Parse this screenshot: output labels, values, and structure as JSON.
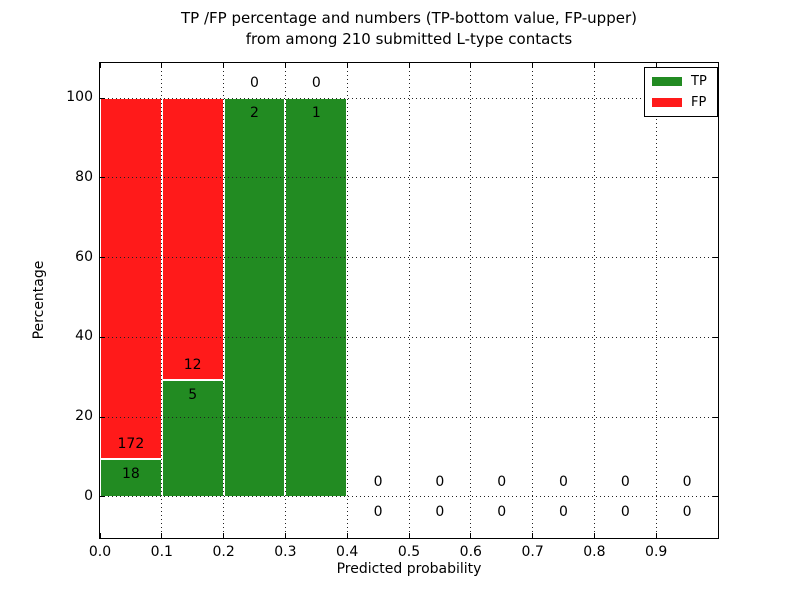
{
  "chart_data": {
    "type": "bar",
    "stacked": true,
    "title_line1": "TP /FP percentage and numbers (TP-bottom value, FP-upper)",
    "title_line2": "from among 210 submitted L-type contacts",
    "xlabel": "Predicted probability",
    "ylabel": "Percentage",
    "xlim": [
      0.0,
      1.0
    ],
    "ylim": [
      -10.3,
      108.8
    ],
    "x_ticks": [
      "0.0",
      "0.1",
      "0.2",
      "0.3",
      "0.4",
      "0.5",
      "0.6",
      "0.7",
      "0.8",
      "0.9"
    ],
    "y_ticks": [
      0,
      20,
      40,
      60,
      80,
      100
    ],
    "grid": true,
    "grid_style": "dotted",
    "legend": {
      "position": "upper right",
      "entries": [
        {
          "label": "TP",
          "color": "#228b22"
        },
        {
          "label": "FP",
          "color": "#ff1a1a"
        }
      ]
    },
    "bins": [
      {
        "range": [
          0.0,
          0.1
        ],
        "tp": 18,
        "fp": 172
      },
      {
        "range": [
          0.1,
          0.2
        ],
        "tp": 5,
        "fp": 12
      },
      {
        "range": [
          0.2,
          0.3
        ],
        "tp": 2,
        "fp": 0
      },
      {
        "range": [
          0.3,
          0.4
        ],
        "tp": 1,
        "fp": 0
      },
      {
        "range": [
          0.4,
          0.5
        ],
        "tp": 0,
        "fp": 0
      },
      {
        "range": [
          0.5,
          0.6
        ],
        "tp": 0,
        "fp": 0
      },
      {
        "range": [
          0.6,
          0.7
        ],
        "tp": 0,
        "fp": 0
      },
      {
        "range": [
          0.7,
          0.8
        ],
        "tp": 0,
        "fp": 0
      },
      {
        "range": [
          0.8,
          0.9
        ],
        "tp": 0,
        "fp": 0
      },
      {
        "range": [
          0.9,
          1.0
        ],
        "tp": 0,
        "fp": 0
      }
    ],
    "total_contacts": 210,
    "annotation_rule": "TP count below green top, FP count above green top"
  },
  "colors": {
    "background": "#ffffff",
    "spine": "#000000",
    "bar_edge": "#ffffff",
    "tp": "#228b22",
    "fp": "#ff1a1a"
  }
}
